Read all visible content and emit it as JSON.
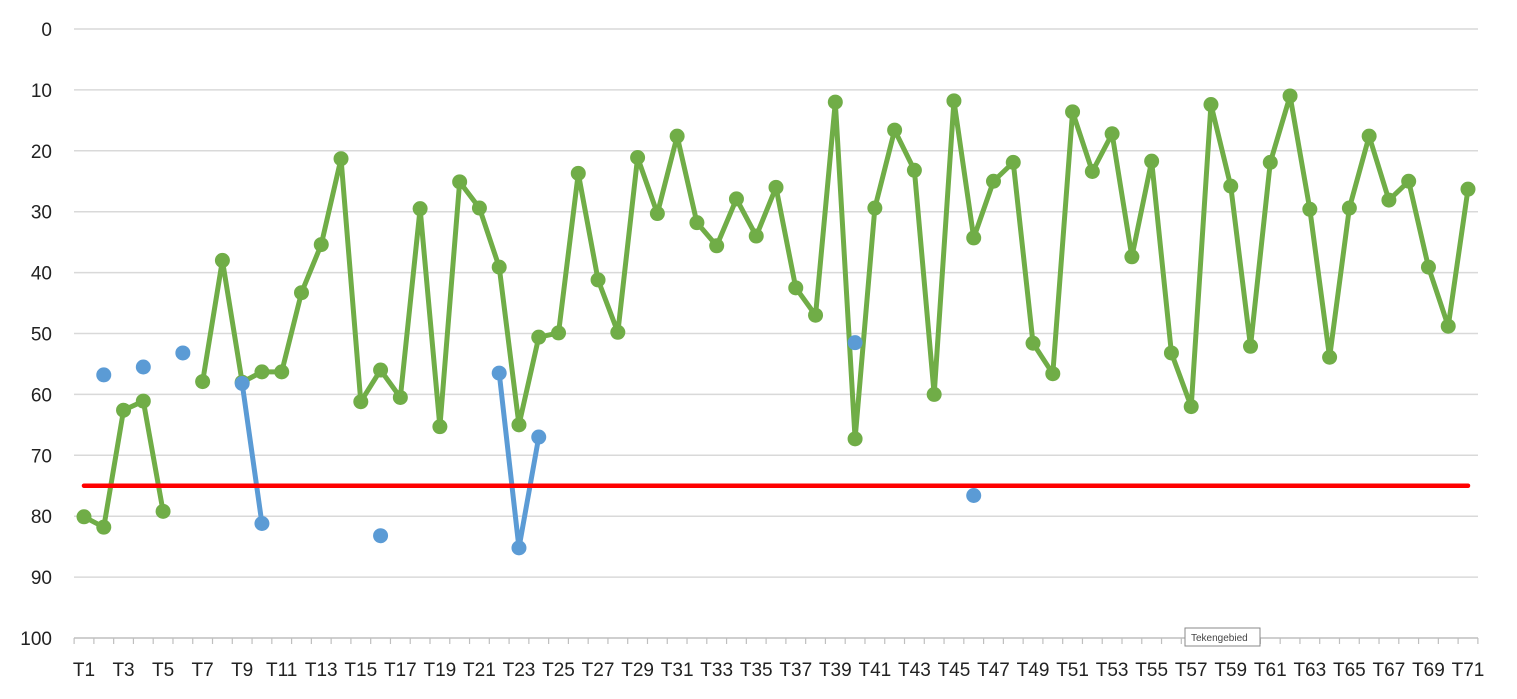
{
  "tooltip": {
    "label": "Tekengebied"
  },
  "colors": {
    "green_series": "#70ad47",
    "blue_series": "#5b9bd5",
    "threshold": "#ff0000",
    "grid": "#d9d9d9",
    "axis": "#bfbfbf"
  },
  "chart_data": {
    "type": "line",
    "title": "",
    "xlabel": "",
    "ylabel": "",
    "y_axis_reversed": true,
    "ylim": [
      0,
      100
    ],
    "yticks": [
      0,
      10,
      20,
      30,
      40,
      50,
      60,
      70,
      80,
      90,
      100
    ],
    "grid": true,
    "legend": "none",
    "categories": [
      "T1",
      "T2",
      "T3",
      "T4",
      "T5",
      "T6",
      "T7",
      "T8",
      "T9",
      "T10",
      "T11",
      "T12",
      "T13",
      "T14",
      "T15",
      "T16",
      "T17",
      "T18",
      "T19",
      "T20",
      "T21",
      "T22",
      "T23",
      "T24",
      "T25",
      "T26",
      "T27",
      "T28",
      "T29",
      "T30",
      "T31",
      "T32",
      "T33",
      "T34",
      "T35",
      "T36",
      "T37",
      "T38",
      "T39",
      "T40",
      "T41",
      "T42",
      "T43",
      "T44",
      "T45",
      "T46",
      "T47",
      "T48",
      "T49",
      "T50",
      "T51",
      "T52",
      "T53",
      "T54",
      "T55",
      "T56",
      "T57",
      "T58",
      "T59",
      "T60",
      "T61",
      "T62",
      "T63",
      "T64",
      "T65",
      "T66",
      "T67",
      "T68",
      "T69",
      "T70",
      "T71"
    ],
    "tick_labels": [
      "T1",
      "T3",
      "T5",
      "T7",
      "T9",
      "T11",
      "T13",
      "T15",
      "T17",
      "T19",
      "T21",
      "T23",
      "T25",
      "T27",
      "T29",
      "T31",
      "T33",
      "T35",
      "T37",
      "T39",
      "T41",
      "T43",
      "T45",
      "T47",
      "T49",
      "T51",
      "T53",
      "T55",
      "T57",
      "T59",
      "T61",
      "T63",
      "T65",
      "T67",
      "T69",
      "T71"
    ],
    "series": [
      {
        "color": "#70ad47",
        "values": [
          80.1,
          81.8,
          62.6,
          61.1,
          79.2,
          null,
          57.9,
          38.0,
          58.0,
          56.3,
          56.3,
          43.3,
          35.4,
          21.3,
          61.2,
          56.0,
          60.5,
          29.5,
          65.3,
          25.1,
          29.4,
          39.1,
          65.0,
          50.6,
          49.9,
          23.7,
          41.2,
          49.8,
          21.1,
          30.3,
          17.6,
          31.8,
          35.6,
          27.9,
          34.0,
          26.0,
          42.5,
          47.0,
          12.0,
          67.3,
          29.4,
          16.6,
          23.2,
          60.0,
          11.8,
          34.3,
          25.0,
          21.9,
          51.6,
          56.6,
          13.6,
          23.4,
          17.2,
          37.4,
          21.7,
          53.2,
          62.0,
          12.4,
          25.8,
          52.1,
          21.9,
          11.0,
          29.6,
          53.9,
          29.4,
          17.6,
          28.1,
          25.0,
          39.1,
          48.8,
          26.3
        ]
      },
      {
        "color": "#5b9bd5",
        "values": [
          null,
          56.8,
          null,
          55.5,
          null,
          53.2,
          null,
          null,
          58.2,
          81.2,
          null,
          null,
          null,
          null,
          null,
          83.2,
          null,
          null,
          null,
          null,
          null,
          56.5,
          85.2,
          67.0,
          null,
          null,
          null,
          null,
          null,
          null,
          null,
          null,
          null,
          null,
          null,
          null,
          null,
          null,
          null,
          51.5,
          null,
          null,
          null,
          null,
          null,
          76.6,
          null,
          null,
          null,
          null,
          null,
          null,
          null,
          null,
          null,
          null,
          null,
          null,
          null,
          null,
          null,
          null,
          null,
          null,
          null,
          null,
          null,
          null,
          null,
          null,
          null
        ]
      },
      {
        "color": "#ff0000",
        "values": [
          75,
          75,
          75,
          75,
          75,
          75,
          75,
          75,
          75,
          75,
          75,
          75,
          75,
          75,
          75,
          75,
          75,
          75,
          75,
          75,
          75,
          75,
          75,
          75,
          75,
          75,
          75,
          75,
          75,
          75,
          75,
          75,
          75,
          75,
          75,
          75,
          75,
          75,
          75,
          75,
          75,
          75,
          75,
          75,
          75,
          75,
          75,
          75,
          75,
          75,
          75,
          75,
          75,
          75,
          75,
          75,
          75,
          75,
          75,
          75,
          75,
          75,
          75,
          75,
          75,
          75,
          75,
          75,
          75,
          75,
          75
        ],
        "markers": false
      }
    ]
  }
}
